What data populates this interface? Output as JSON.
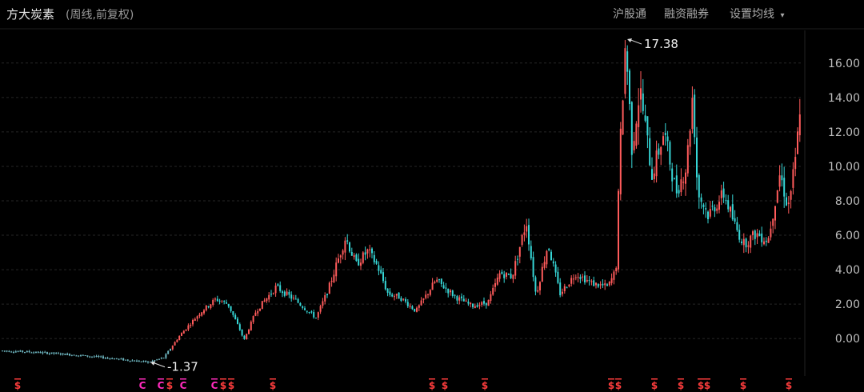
{
  "header": {
    "stock_name": "方大炭素",
    "subtitle": "(周线,前复权)",
    "tabs": [
      "沪股通",
      "融资融券"
    ],
    "settings_label": "设置均线",
    "settings_arrow": "▾"
  },
  "chart_data": {
    "type": "candlestick",
    "ylim": [
      -1.8,
      17.8
    ],
    "yticks": [
      0,
      2,
      4,
      6,
      8,
      10,
      12,
      14,
      16
    ],
    "ytick_labels": [
      "0.00",
      "2.00",
      "4.00",
      "6.00",
      "8.00",
      "10.00",
      "12.00",
      "14.00",
      "16.00"
    ],
    "grid": true,
    "up_color": "#ff5b5b",
    "down_color": "#36d6d6",
    "price_path": [
      [
        0,
        -0.7
      ],
      [
        40,
        -0.78
      ],
      [
        80,
        -0.9
      ],
      [
        130,
        -1.1
      ],
      [
        170,
        -1.3
      ],
      [
        186,
        -1.37
      ],
      [
        205,
        -1.1
      ],
      [
        225,
        0.2
      ],
      [
        250,
        1.5
      ],
      [
        270,
        2.3
      ],
      [
        285,
        2.0
      ],
      [
        300,
        0.5
      ],
      [
        305,
        -0.1
      ],
      [
        320,
        1.6
      ],
      [
        345,
        3.0
      ],
      [
        370,
        2.2
      ],
      [
        395,
        1.2
      ],
      [
        410,
        2.8
      ],
      [
        432,
        5.9
      ],
      [
        445,
        4.3
      ],
      [
        460,
        5.1
      ],
      [
        472,
        4.2
      ],
      [
        485,
        2.6
      ],
      [
        500,
        2.4
      ],
      [
        520,
        1.6
      ],
      [
        545,
        3.4
      ],
      [
        570,
        2.4
      ],
      [
        590,
        1.9
      ],
      [
        610,
        2.1
      ],
      [
        625,
        3.8
      ],
      [
        640,
        3.6
      ],
      [
        658,
        6.8
      ],
      [
        670,
        2.5
      ],
      [
        685,
        5.5
      ],
      [
        700,
        2.6
      ],
      [
        720,
        3.8
      ],
      [
        740,
        3.2
      ],
      [
        760,
        3.0
      ],
      [
        770,
        4.0
      ],
      [
        775,
        11.0
      ],
      [
        782,
        17.38
      ],
      [
        790,
        11.0
      ],
      [
        800,
        14.5
      ],
      [
        815,
        9.5
      ],
      [
        830,
        12.0
      ],
      [
        845,
        8.5
      ],
      [
        858,
        10.0
      ],
      [
        866,
        14.3
      ],
      [
        872,
        8.5
      ],
      [
        885,
        7.2
      ],
      [
        905,
        8.4
      ],
      [
        920,
        6.4
      ],
      [
        930,
        5.5
      ],
      [
        945,
        6.1
      ],
      [
        960,
        5.7
      ],
      [
        975,
        9.6
      ],
      [
        985,
        7.6
      ],
      [
        995,
        10.5
      ],
      [
        1000,
        13.6
      ]
    ],
    "annotations": [
      {
        "label": "17.38",
        "x": 782,
        "y": 17.38,
        "side": "right"
      },
      {
        "label": "-1.37",
        "x": 186,
        "y": -1.37,
        "side": "right"
      }
    ],
    "markers": [
      {
        "x": 22,
        "label": "$",
        "color": "#ff3d3d"
      },
      {
        "x": 178,
        "label": "C",
        "color": "#ff2bbd"
      },
      {
        "x": 201,
        "label": "C",
        "color": "#ff2bbd"
      },
      {
        "x": 212,
        "label": "$",
        "color": "#ff3d3d"
      },
      {
        "x": 229,
        "label": "C",
        "color": "#ff2bbd"
      },
      {
        "x": 268,
        "label": "C",
        "color": "#ff2bbd"
      },
      {
        "x": 279,
        "label": "$",
        "color": "#ff3d3d"
      },
      {
        "x": 289,
        "label": "$",
        "color": "#ff3d3d"
      },
      {
        "x": 341,
        "label": "$",
        "color": "#ff3d3d"
      },
      {
        "x": 540,
        "label": "$",
        "color": "#ff3d3d"
      },
      {
        "x": 556,
        "label": "$",
        "color": "#ff3d3d"
      },
      {
        "x": 606,
        "label": "$",
        "color": "#ff3d3d"
      },
      {
        "x": 764,
        "label": "$",
        "color": "#ff3d3d"
      },
      {
        "x": 773,
        "label": "$",
        "color": "#ff3d3d"
      },
      {
        "x": 818,
        "label": "$",
        "color": "#ff3d3d"
      },
      {
        "x": 851,
        "label": "$",
        "color": "#ff3d3d"
      },
      {
        "x": 876,
        "label": "$",
        "color": "#ff3d3d"
      },
      {
        "x": 884,
        "label": "$",
        "color": "#ff3d3d"
      },
      {
        "x": 929,
        "label": "$",
        "color": "#ff3d3d"
      },
      {
        "x": 986,
        "label": "$",
        "color": "#ff3d3d"
      }
    ]
  }
}
